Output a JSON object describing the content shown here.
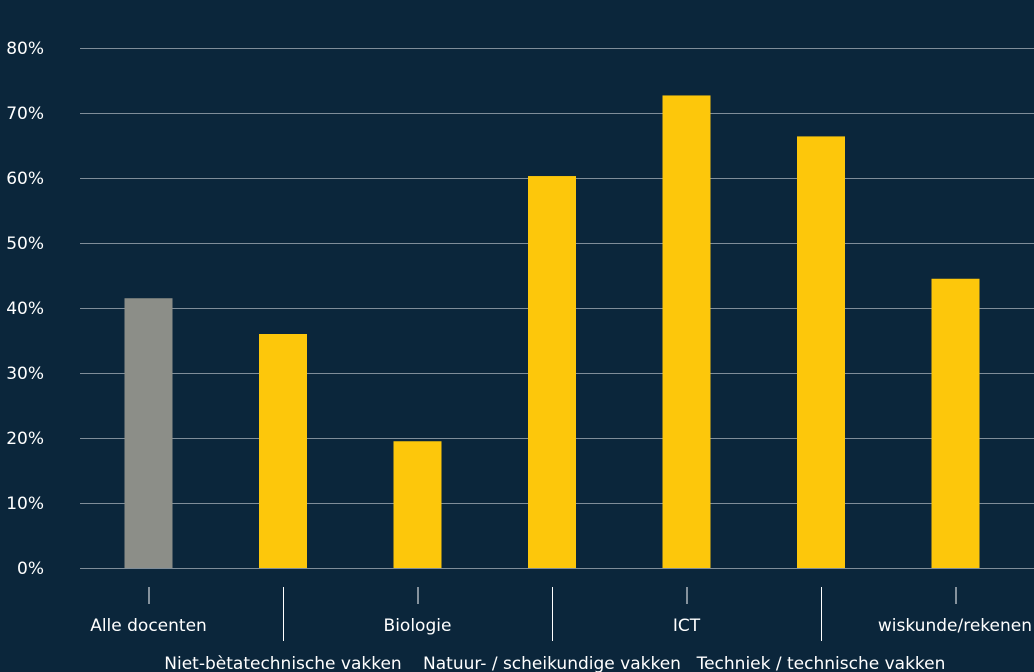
{
  "chart_data": {
    "type": "bar",
    "categories": [
      "Alle docenten",
      "Niet-bètatechnische vakken",
      "Biologie",
      "Natuur- / scheikundige vakken",
      "ICT",
      "Techniek / technische vakken",
      "wiskunde/rekenen"
    ],
    "values": [
      41.5,
      36,
      19.5,
      60.3,
      72.7,
      66.4,
      44.5
    ],
    "bar_colors": [
      "#8c8e88",
      "#fdc70b",
      "#fdc70b",
      "#fdc70b",
      "#fdc70b",
      "#fdc70b",
      "#fdc70b"
    ],
    "ylim": [
      0,
      80
    ],
    "yticks": [
      0,
      10,
      20,
      30,
      40,
      50,
      60,
      70,
      80
    ],
    "ytick_labels": [
      "0%",
      "10%",
      "20%",
      "30%",
      "40%",
      "50%",
      "60%",
      "70%",
      "80%"
    ],
    "grid": true,
    "title": "",
    "xlabel": "",
    "ylabel": ""
  },
  "colors": {
    "background": "#0b263b",
    "gridline": "#7f8d99",
    "text": "#ffffff"
  }
}
